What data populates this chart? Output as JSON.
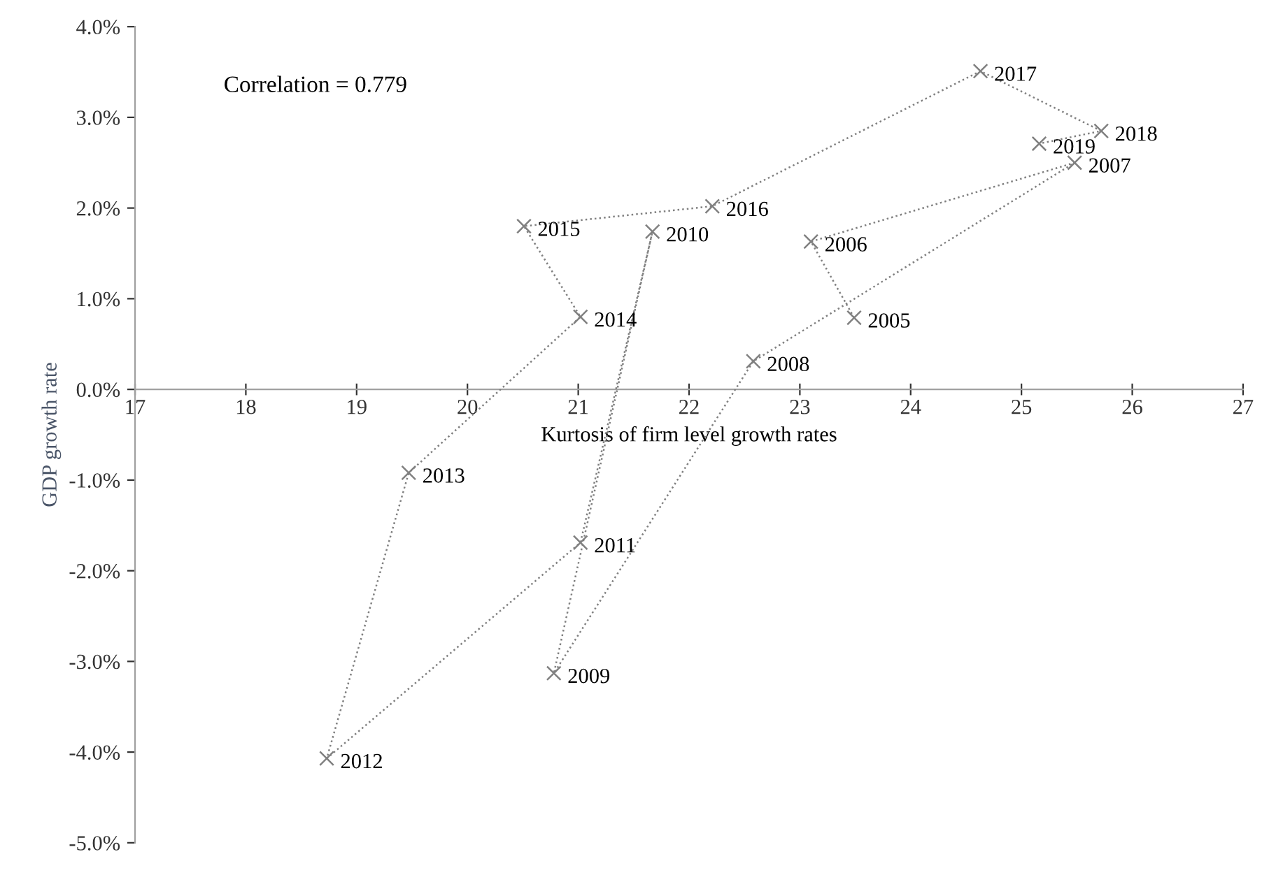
{
  "chart_data": {
    "type": "line",
    "xlabel": "Kurtosis of firm level growth rates",
    "ylabel": "GDP growth rate",
    "xlim": [
      17,
      27
    ],
    "xticks": [
      17,
      18,
      19,
      20,
      21,
      22,
      23,
      24,
      25,
      26,
      27
    ],
    "ylim": [
      -5,
      4
    ],
    "yticks": [
      {
        "value": -5,
        "label": "-5.0%"
      },
      {
        "value": -4,
        "label": "-4.0%"
      },
      {
        "value": -3,
        "label": "-3.0%"
      },
      {
        "value": -2,
        "label": "-2.0%"
      },
      {
        "value": -1,
        "label": "-1.0%"
      },
      {
        "value": 0,
        "label": "0.0%"
      },
      {
        "value": 1,
        "label": "1.0%"
      },
      {
        "value": 2,
        "label": "2.0%"
      },
      {
        "value": 3,
        "label": "3.0%"
      },
      {
        "value": 4,
        "label": "4.0%"
      }
    ],
    "grid": false,
    "legend": false,
    "marker": "cross",
    "line_style": "dotted",
    "series": [
      {
        "color": "#808080",
        "x": [
          23.49,
          23.1,
          25.48,
          22.58,
          20.78,
          21.67,
          21.02,
          18.73,
          19.47,
          21.02,
          20.51,
          22.21,
          24.63,
          25.72,
          25.16
        ],
        "values": [
          0.79,
          1.63,
          2.5,
          0.31,
          -3.13,
          1.74,
          -1.69,
          -4.07,
          -0.92,
          0.8,
          1.8,
          2.02,
          3.51,
          2.85,
          2.71
        ]
      }
    ],
    "annotations": [
      "Correlation = 0.779",
      {
        "text": "2005",
        "x": 23.49,
        "y": 0.79
      },
      {
        "text": "2006",
        "x": 23.1,
        "y": 1.63
      },
      {
        "text": "2007",
        "x": 25.48,
        "y": 2.5
      },
      {
        "text": "2008",
        "x": 22.58,
        "y": 0.31
      },
      {
        "text": "2009",
        "x": 20.78,
        "y": -3.13
      },
      {
        "text": "2010",
        "x": 21.67,
        "y": 1.74
      },
      {
        "text": "2011",
        "x": 21.02,
        "y": -1.69
      },
      {
        "text": "2012",
        "x": 18.73,
        "y": -4.07
      },
      {
        "text": "2013",
        "x": 19.47,
        "y": -0.92
      },
      {
        "text": "2014",
        "x": 21.02,
        "y": 0.8
      },
      {
        "text": "2015",
        "x": 20.51,
        "y": 1.8
      },
      {
        "text": "2016",
        "x": 22.21,
        "y": 2.02
      },
      {
        "text": "2017",
        "x": 24.63,
        "y": 3.51
      },
      {
        "text": "2018",
        "x": 25.72,
        "y": 2.85
      },
      {
        "text": "2019",
        "x": 25.16,
        "y": 2.71
      }
    ]
  }
}
